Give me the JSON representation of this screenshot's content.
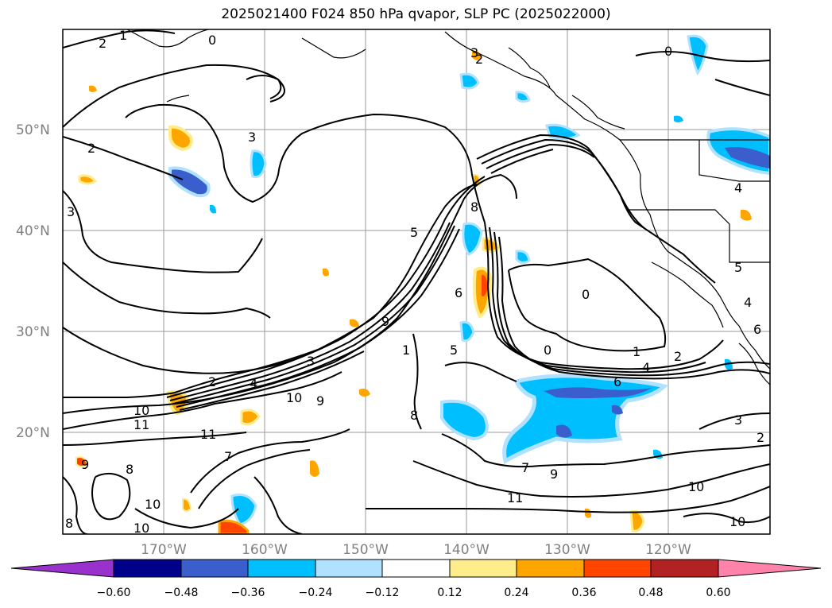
{
  "title": "2025021400 F024 850 hPa qvapor, SLP PC (2025022000)",
  "map": {
    "lat_labels": [
      "50°N",
      "40°N",
      "30°N",
      "20°N"
    ],
    "lon_labels": [
      "170°W",
      "160°W",
      "150°W",
      "140°W",
      "130°W",
      "120°W"
    ],
    "contour_labels": [
      "2",
      "1",
      "0",
      "3",
      "2",
      "3",
      "0",
      "2",
      "3",
      "4",
      "8",
      "5",
      "6",
      "5",
      "1",
      "0",
      "0",
      "1",
      "2",
      "4",
      "6",
      "10",
      "11",
      "10",
      "9",
      "11",
      "2",
      "4",
      "3",
      "9",
      "8",
      "7",
      "9",
      "10",
      "11",
      "8",
      "9",
      "10",
      "10",
      "3",
      "2",
      "5",
      "4",
      "6",
      "8",
      "10",
      "7"
    ]
  },
  "colorbar": {
    "ticks": [
      "−0.60",
      "−0.48",
      "−0.36",
      "−0.24",
      "−0.12",
      "0.12",
      "0.24",
      "0.36",
      "0.48",
      "0.60"
    ],
    "colors": [
      "#9932cc",
      "#00008b",
      "#3a5fcd",
      "#00bfff",
      "#b0e2ff",
      "#ffffff",
      "#ffec8b",
      "#ffa500",
      "#ff4500",
      "#b22222",
      "#ff82ab"
    ]
  }
}
